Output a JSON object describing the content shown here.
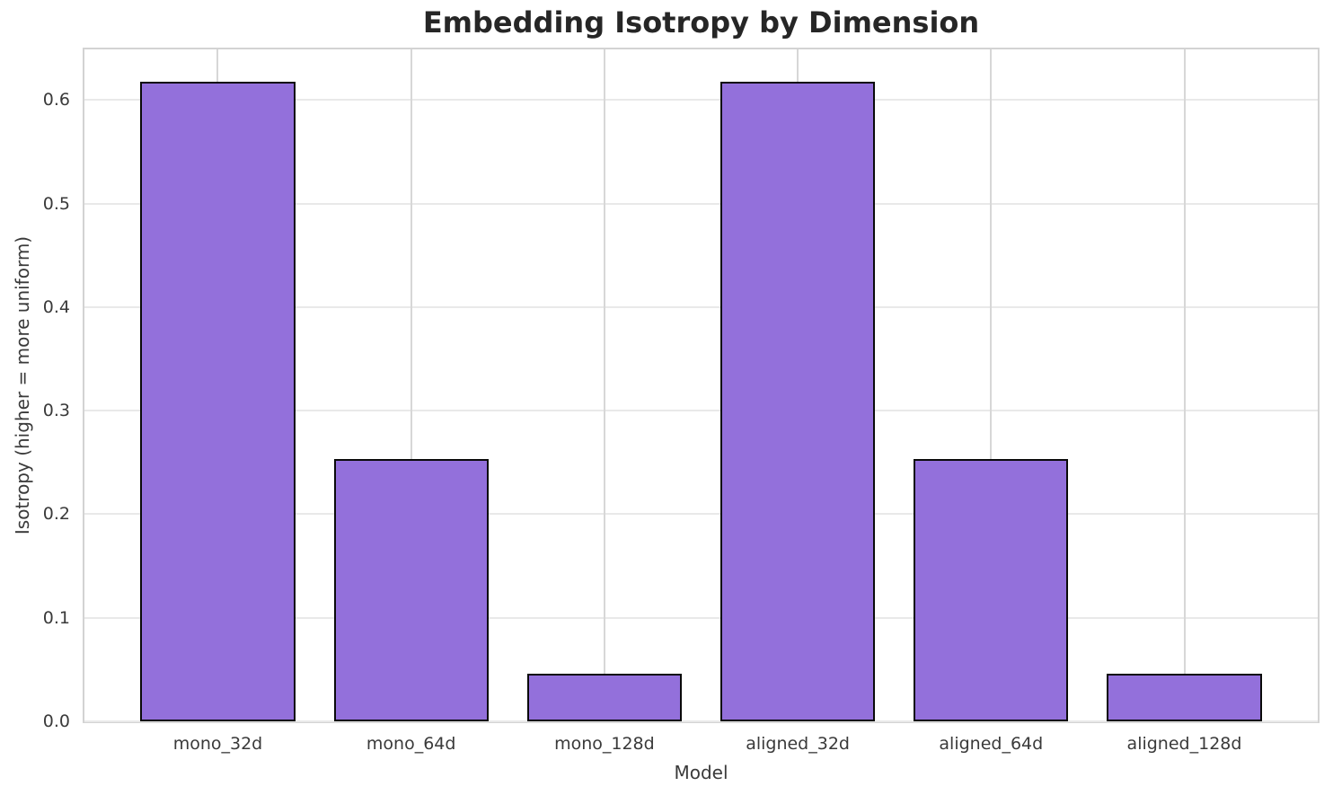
{
  "chart_data": {
    "type": "bar",
    "title": "Embedding Isotropy by Dimension",
    "xlabel": "Model",
    "ylabel": "Isotropy (higher = more uniform)",
    "categories": [
      "mono_32d",
      "mono_64d",
      "mono_128d",
      "aligned_32d",
      "aligned_64d",
      "aligned_128d"
    ],
    "values": [
      0.618,
      0.253,
      0.046,
      0.618,
      0.253,
      0.046
    ],
    "ylim": [
      0,
      0.649
    ],
    "yticks": [
      "0.0",
      "0.1",
      "0.2",
      "0.3",
      "0.4",
      "0.5",
      "0.6"
    ],
    "grid": true,
    "legend": false,
    "colors": {
      "bar_fill": "#9370db",
      "bar_edge": "#0a0a0a",
      "grid_horizontal": "#e9e9e9",
      "grid_vertical": "#d7d7d7",
      "spine": "#d3d3d3",
      "tick_text": "#3a3a3a",
      "title_text": "#262626",
      "background": "#ffffff"
    }
  }
}
